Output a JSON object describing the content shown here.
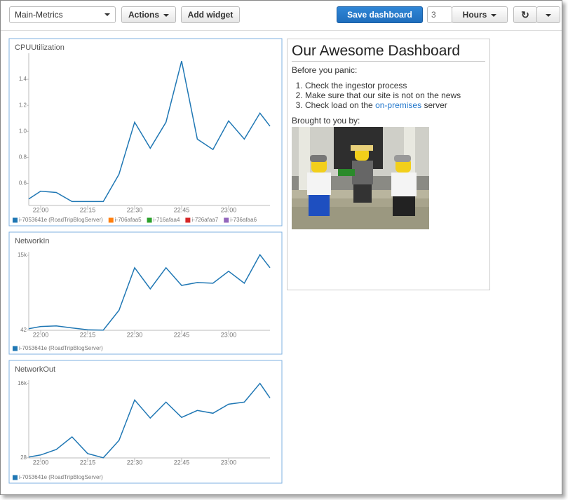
{
  "toolbar": {
    "dashboard_select": "Main-Metrics",
    "actions": "Actions",
    "add_widget": "Add widget",
    "save": "Save dashboard",
    "range_value": "3",
    "range_unit": "Hours"
  },
  "widgets": [
    {
      "type": "line",
      "title": "CPUUtilization",
      "x": [
        -3.8,
        0,
        5,
        10,
        15,
        20,
        25,
        30,
        35,
        40,
        45,
        50,
        55,
        60,
        65,
        70,
        73.2
      ],
      "xlim": [
        -3.8,
        73.2
      ],
      "xticks": [
        {
          "value": 0,
          "label": "22:00"
        },
        {
          "value": 15,
          "label": "22:15"
        },
        {
          "value": 30,
          "label": "22:30"
        },
        {
          "value": 45,
          "label": "22:45"
        },
        {
          "value": 60,
          "label": "23:00"
        }
      ],
      "ylim": [
        0.43,
        1.6
      ],
      "yticks": [
        0.6,
        0.8,
        {
          "value": 1,
          "label": "1.0"
        },
        1.2,
        1.4
      ],
      "series": [
        {
          "name": "i-7053641e (RoadTripBlogServer)",
          "color": "#1f77b4",
          "values": [
            0.48,
            0.54,
            0.53,
            0.46,
            0.46,
            0.46,
            0.67,
            1.07,
            0.87,
            1.07,
            1.54,
            0.94,
            0.86,
            1.08,
            0.94,
            1.14,
            1.04
          ]
        }
      ],
      "legend_extra": [
        {
          "name": "i-706afaa5",
          "color": "#ff7f0e"
        },
        {
          "name": "i-716afaa4",
          "color": "#2ca02c"
        },
        {
          "name": "i-726afaa7",
          "color": "#d62728"
        },
        {
          "name": "i-736afaa6",
          "color": "#9467bd"
        }
      ]
    },
    {
      "type": "line",
      "title": "NetworkIn",
      "x": [
        -3.8,
        0,
        5,
        10,
        15,
        20,
        25,
        30,
        35,
        40,
        45,
        50,
        55,
        60,
        65,
        70,
        73.2
      ],
      "xlim": [
        -3.8,
        73.2
      ],
      "xticks": [
        {
          "value": 0,
          "label": "22:00"
        },
        {
          "value": 15,
          "label": "22:15"
        },
        {
          "value": 30,
          "label": "22:30"
        },
        {
          "value": 45,
          "label": "22:45"
        },
        {
          "value": 60,
          "label": "23:00"
        }
      ],
      "ylim": [
        0,
        15700
      ],
      "yticks": [
        42,
        {
          "value": 15000,
          "label": "15k"
        }
      ],
      "series": [
        {
          "name": "i-7053641e (RoadTripBlogServer)",
          "color": "#1f77b4",
          "values": [
            320,
            750,
            890,
            470,
            100,
            42,
            4000,
            12500,
            8270,
            12500,
            8970,
            9540,
            9400,
            11800,
            9400,
            15100,
            12500
          ]
        }
      ]
    },
    {
      "type": "line",
      "title": "NetworkOut",
      "x": [
        -3.8,
        0,
        5,
        10,
        15,
        20,
        25,
        30,
        35,
        40,
        45,
        50,
        55,
        60,
        65,
        70,
        73.2
      ],
      "xlim": [
        -3.8,
        73.2
      ],
      "xticks": [
        {
          "value": 0,
          "label": "22:00"
        },
        {
          "value": 15,
          "label": "22:15"
        },
        {
          "value": 30,
          "label": "22:30"
        },
        {
          "value": 45,
          "label": "22:45"
        },
        {
          "value": 60,
          "label": "23:00"
        }
      ],
      "ylim": [
        0,
        16700
      ],
      "yticks": [
        28,
        {
          "value": 16000,
          "label": "16k"
        }
      ],
      "series": [
        {
          "name": "i-7053641e (RoadTripBlogServer)",
          "color": "#1f77b4",
          "values": [
            180,
            630,
            1820,
            4510,
            930,
            28,
            3760,
            12420,
            8540,
            11970,
            8690,
            10180,
            9580,
            11520,
            11970,
            16000,
            12860
          ]
        }
      ]
    }
  ],
  "text_widget": {
    "title": "Our Awesome Dashboard",
    "intro": "Before you panic:",
    "steps": [
      "Check the ingestor process",
      "Make sure that our site is not on the news"
    ],
    "step3": {
      "before": "Check load on the",
      "link": "on-premises",
      "after": "server"
    },
    "credit": "Brought to you by:"
  }
}
